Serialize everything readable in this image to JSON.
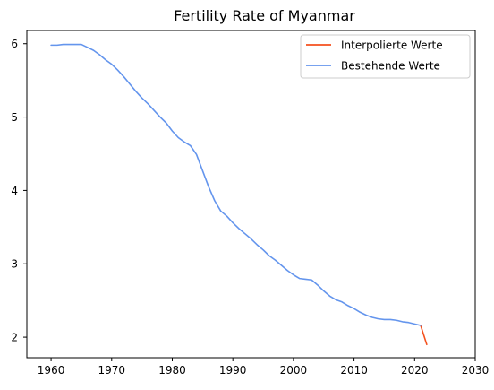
{
  "chart_data": {
    "type": "line",
    "title": "Fertility Rate of Myanmar",
    "xlabel": "",
    "ylabel": "",
    "xlim": [
      1956,
      2030
    ],
    "ylim": [
      1.72,
      6.18
    ],
    "xticks": [
      1960,
      1970,
      1980,
      1990,
      2000,
      2010,
      2020,
      2030
    ],
    "yticks": [
      2,
      3,
      4,
      5,
      6
    ],
    "grid": false,
    "legend_position": "top-right",
    "series": [
      {
        "name": "Interpolierte Werte",
        "color": "#f4511e",
        "x": [
          2021,
          2022
        ],
        "y": [
          2.16,
          1.9
        ]
      },
      {
        "name": "Bestehende Werte",
        "color": "#6495ed",
        "x": [
          1960,
          1961,
          1962,
          1963,
          1964,
          1965,
          1966,
          1967,
          1968,
          1969,
          1970,
          1971,
          1972,
          1973,
          1974,
          1975,
          1976,
          1977,
          1978,
          1979,
          1980,
          1981,
          1982,
          1983,
          1984,
          1985,
          1986,
          1987,
          1988,
          1989,
          1990,
          1991,
          1992,
          1993,
          1994,
          1995,
          1996,
          1997,
          1998,
          1999,
          2000,
          2001,
          2002,
          2003,
          2004,
          2005,
          2006,
          2007,
          2008,
          2009,
          2010,
          2011,
          2012,
          2013,
          2014,
          2015,
          2016,
          2017,
          2018,
          2019,
          2020,
          2021
        ],
        "y": [
          5.98,
          5.98,
          5.99,
          5.99,
          5.99,
          5.99,
          5.95,
          5.91,
          5.85,
          5.78,
          5.72,
          5.64,
          5.55,
          5.45,
          5.35,
          5.26,
          5.18,
          5.09,
          5.0,
          4.92,
          4.81,
          4.72,
          4.66,
          4.61,
          4.49,
          4.27,
          4.05,
          3.86,
          3.72,
          3.65,
          3.56,
          3.48,
          3.41,
          3.34,
          3.26,
          3.19,
          3.11,
          3.05,
          2.98,
          2.91,
          2.85,
          2.8,
          2.79,
          2.78,
          2.71,
          2.63,
          2.56,
          2.51,
          2.48,
          2.43,
          2.39,
          2.34,
          2.3,
          2.27,
          2.25,
          2.24,
          2.24,
          2.23,
          2.21,
          2.2,
          2.18,
          2.16
        ]
      }
    ]
  }
}
